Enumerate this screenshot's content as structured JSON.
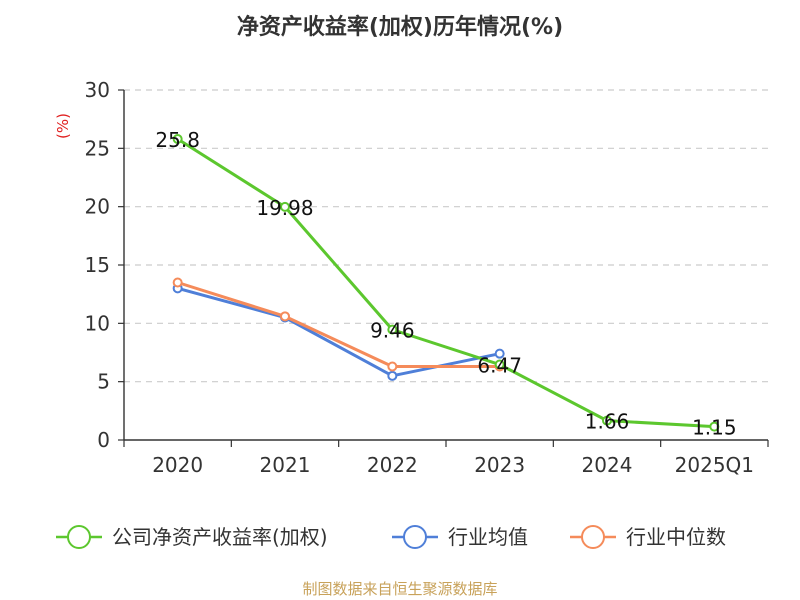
{
  "title": "净资产收益率(加权)历年情况(%)",
  "source": "制图数据来自恒生聚源数据库",
  "chart_data": {
    "type": "line",
    "title": "净资产收益率(加权)历年情况(%)",
    "ylabel": "(%)",
    "xlabel": "",
    "categories": [
      "2020",
      "2021",
      "2022",
      "2023",
      "2024",
      "2025Q1"
    ],
    "ylim": [
      0,
      30
    ],
    "yticks": [
      0,
      5,
      10,
      15,
      20,
      25,
      30
    ],
    "grid": true,
    "legend_position": "bottom",
    "series": [
      {
        "name": "公司净资产收益率(加权)",
        "color": "#5cc72e",
        "values": [
          25.8,
          19.98,
          9.46,
          6.47,
          1.66,
          1.15
        ],
        "labels": [
          "25.8",
          "19.98",
          "9.46",
          "6.47",
          "1.66",
          "1.15"
        ]
      },
      {
        "name": "行业均值",
        "color": "#4f7fd8",
        "values": [
          13.0,
          10.5,
          5.5,
          7.4,
          null,
          null
        ]
      },
      {
        "name": "行业中位数",
        "color": "#f58b5a",
        "values": [
          13.5,
          10.6,
          6.3,
          6.3,
          null,
          null
        ]
      }
    ]
  }
}
